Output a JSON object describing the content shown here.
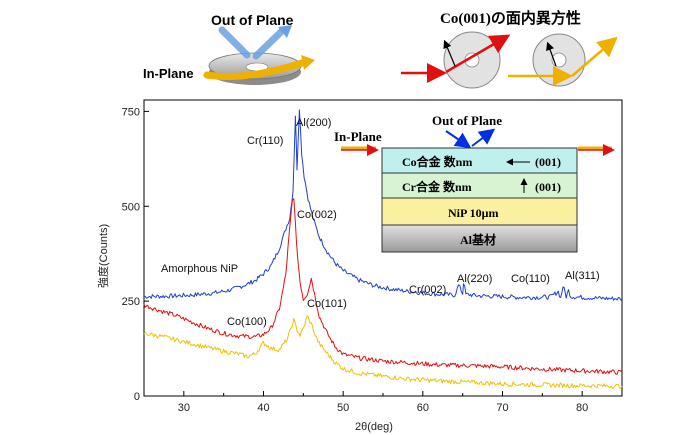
{
  "chart_data": {
    "type": "line",
    "title": "",
    "xlabel": "2θ(deg)",
    "ylabel": "強度(Counts)",
    "xlim": [
      25,
      85
    ],
    "ylim": [
      0,
      780
    ],
    "x_ticks": [
      30,
      40,
      50,
      60,
      70,
      80
    ],
    "y_ticks": [
      0,
      250,
      500,
      750
    ],
    "x_tick_labels": [
      "30",
      "40",
      "50",
      "60",
      "70",
      "80"
    ],
    "y_tick_labels": [
      "0",
      "250",
      "500",
      "750"
    ],
    "series": [
      {
        "name": "Amorphous NiP (blue)",
        "color": "#1f3fd0",
        "points": [
          [
            25,
            262
          ],
          [
            28,
            263
          ],
          [
            31,
            266
          ],
          [
            34,
            272
          ],
          [
            36,
            280
          ],
          [
            38,
            295
          ],
          [
            39,
            305
          ],
          [
            40,
            322
          ],
          [
            41,
            345
          ],
          [
            42,
            390
          ],
          [
            42.8,
            440
          ],
          [
            43.3,
            470
          ],
          [
            43.7,
            540
          ],
          [
            44.0,
            740
          ],
          [
            44.2,
            600
          ],
          [
            44.5,
            760
          ],
          [
            44.8,
            640
          ],
          [
            45.1,
            580
          ],
          [
            45.6,
            520
          ],
          [
            46.2,
            470
          ],
          [
            47,
            420
          ],
          [
            48,
            380
          ],
          [
            49,
            350
          ],
          [
            50,
            330
          ],
          [
            52,
            305
          ],
          [
            54,
            290
          ],
          [
            56,
            282
          ],
          [
            58,
            276
          ],
          [
            60,
            272
          ],
          [
            62,
            268
          ],
          [
            64,
            266
          ],
          [
            64.5,
            292
          ],
          [
            65.0,
            270
          ],
          [
            65.1,
            300
          ],
          [
            65.4,
            268
          ],
          [
            67,
            264
          ],
          [
            70,
            262
          ],
          [
            72,
            260
          ],
          [
            74,
            260
          ],
          [
            76,
            261
          ],
          [
            77,
            275
          ],
          [
            77.3,
            258
          ],
          [
            77.6,
            290
          ],
          [
            78.0,
            262
          ],
          [
            78.3,
            278
          ],
          [
            78.6,
            262
          ],
          [
            80,
            260
          ],
          [
            82,
            258
          ],
          [
            85,
            256
          ]
        ]
      },
      {
        "name": "In-Plane (red)",
        "color": "#e01010",
        "points": [
          [
            25,
            240
          ],
          [
            27,
            225
          ],
          [
            29,
            212
          ],
          [
            31,
            195
          ],
          [
            33,
            178
          ],
          [
            35,
            165
          ],
          [
            37,
            158
          ],
          [
            39,
            156
          ],
          [
            40,
            162
          ],
          [
            41,
            180
          ],
          [
            42,
            230
          ],
          [
            42.8,
            320
          ],
          [
            43.2,
            420
          ],
          [
            43.6,
            510
          ],
          [
            43.8,
            525
          ],
          [
            44.0,
            450
          ],
          [
            44.3,
            360
          ],
          [
            44.6,
            300
          ],
          [
            45.0,
            255
          ],
          [
            45.5,
            270
          ],
          [
            46.0,
            310
          ],
          [
            46.4,
            270
          ],
          [
            47,
            210
          ],
          [
            48,
            165
          ],
          [
            49,
            130
          ],
          [
            50,
            110
          ],
          [
            52,
            100
          ],
          [
            55,
            92
          ],
          [
            58,
            88
          ],
          [
            62,
            82
          ],
          [
            66,
            80
          ],
          [
            70,
            77
          ],
          [
            74,
            72
          ],
          [
            78,
            68
          ],
          [
            82,
            65
          ],
          [
            85,
            62
          ]
        ]
      },
      {
        "name": "Out of Plane (yellow)",
        "color": "#f0c000",
        "points": [
          [
            25,
            165
          ],
          [
            27,
            158
          ],
          [
            29,
            148
          ],
          [
            31,
            138
          ],
          [
            33,
            128
          ],
          [
            35,
            118
          ],
          [
            37,
            110
          ],
          [
            38,
            104
          ],
          [
            39,
            112
          ],
          [
            40,
            140
          ],
          [
            41,
            125
          ],
          [
            42,
            122
          ],
          [
            43,
            150
          ],
          [
            43.8,
            200
          ],
          [
            44.2,
            175
          ],
          [
            44.6,
            160
          ],
          [
            45.0,
            178
          ],
          [
            45.5,
            210
          ],
          [
            46.0,
            190
          ],
          [
            46.5,
            160
          ],
          [
            47,
            138
          ],
          [
            48,
            112
          ],
          [
            49,
            88
          ],
          [
            50,
            72
          ],
          [
            52,
            60
          ],
          [
            55,
            52
          ],
          [
            58,
            45
          ],
          [
            62,
            40
          ],
          [
            66,
            36
          ],
          [
            70,
            32
          ],
          [
            74,
            30
          ],
          [
            78,
            28
          ],
          [
            82,
            27
          ],
          [
            85,
            26
          ]
        ]
      }
    ],
    "annotations": [
      "Cr(110)",
      "Al(200)",
      "Co(002)",
      "Amorphous NiP",
      "Co(100)",
      "Co(101)",
      "Cr(002)",
      "Al(220)",
      "Co(110)",
      "Al(311)"
    ]
  },
  "diagram": {
    "out_of_plane_label": "Out of Plane",
    "in_plane_label": "In-Plane",
    "anisotropy_title": "Co(001)の面内異方性",
    "inset_out_of_plane": "Out of Plane",
    "inset_in_plane": "In-Plane",
    "layers": [
      {
        "label": "Co合金 数nm",
        "note": "(001)",
        "color": "#bff0ee"
      },
      {
        "label": "Cr合金 数nm",
        "note": "(001)",
        "color": "#d8f3d2"
      },
      {
        "label": "NiP 10μm",
        "note": "",
        "color": "#fbf0a0"
      },
      {
        "label": "Al基材",
        "note": "",
        "color": "#b8b8b8"
      }
    ]
  },
  "colors": {
    "blue": "#1f3fd0",
    "red": "#e01010",
    "yellow": "#f0c000",
    "arrow_blue": "#0030e0",
    "arrow_yellow": "#f0b000"
  }
}
